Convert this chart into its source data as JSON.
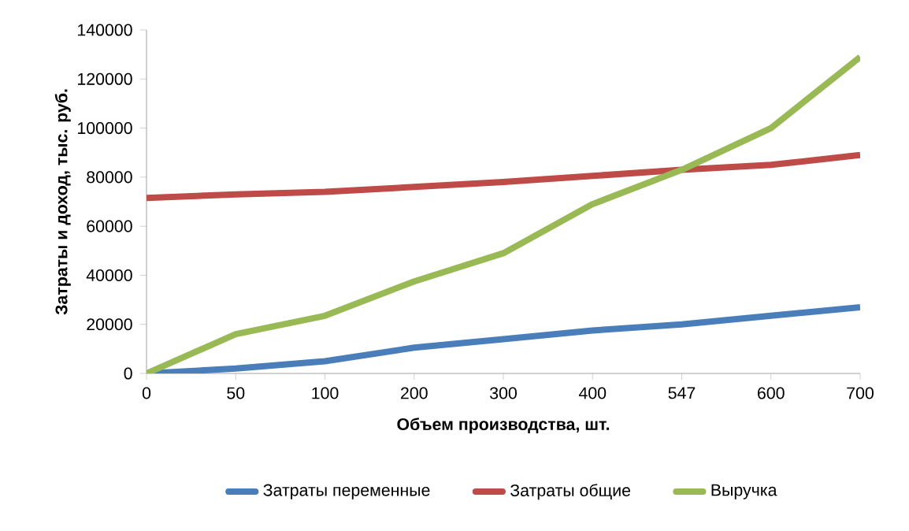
{
  "chart_data": {
    "type": "line",
    "xlabel": "Объем производства,  шт.",
    "ylabel": "Затраты и доход, тыс. руб.",
    "categories": [
      "0",
      "50",
      "100",
      "200",
      "300",
      "400",
      "547",
      "600",
      "700"
    ],
    "series": [
      {
        "name": "Затраты переменные",
        "color": "#4a7ebb",
        "values": [
          0,
          2000,
          5000,
          10500,
          14000,
          17500,
          20000,
          23500,
          27000
        ]
      },
      {
        "name": "Затраты общие",
        "color": "#be4b48",
        "values": [
          71500,
          73000,
          74000,
          76000,
          78000,
          80500,
          83000,
          85000,
          89000
        ]
      },
      {
        "name": "Выручка",
        "color": "#98b954",
        "values": [
          0,
          16000,
          23500,
          37500,
          49000,
          69000,
          83000,
          100000,
          129000
        ]
      }
    ],
    "ylim": [
      0,
      140000
    ],
    "yticks": [
      0,
      20000,
      40000,
      60000,
      80000,
      100000,
      120000,
      140000
    ],
    "legend": "bottom",
    "marker": "none",
    "line_style": "solid"
  }
}
